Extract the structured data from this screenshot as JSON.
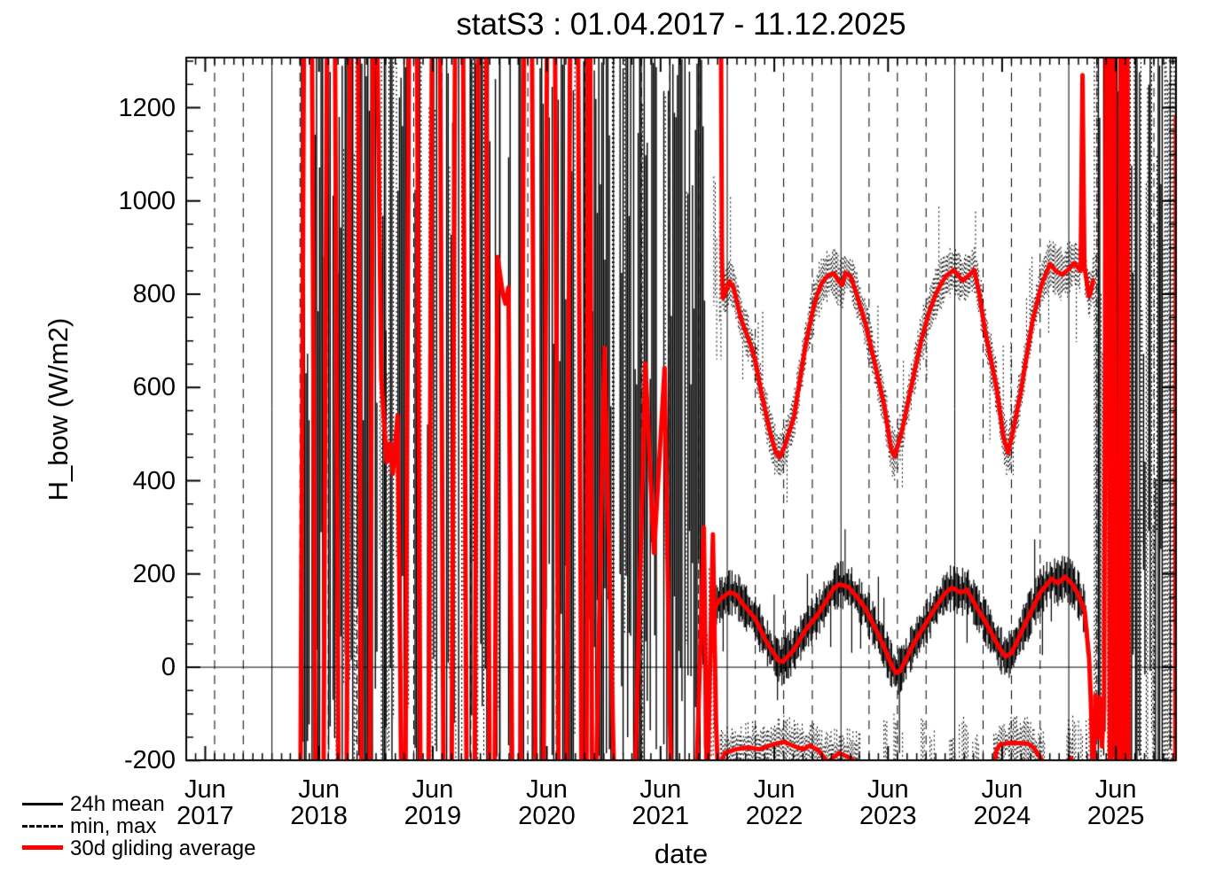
{
  "title": "statS3 : 01.04.2017 - 11.12.2025",
  "axes": {
    "xlabel": "date",
    "ylabel": "H_bow (W/m2)",
    "x_major_month_label": "Jun",
    "x_years": [
      "2017",
      "2018",
      "2019",
      "2020",
      "2021",
      "2022",
      "2023",
      "2024",
      "2025"
    ],
    "y_ticks": [
      -200,
      0,
      200,
      400,
      600,
      800,
      1000,
      1200
    ],
    "y_minor_step": 50
  },
  "legend": [
    {
      "label": "24h mean",
      "style": "solid",
      "color": "#000000"
    },
    {
      "label": "min, max",
      "style": "dashed",
      "color": "#000000"
    },
    {
      "label": "30d gliding average",
      "style": "solid-thick",
      "color": "#ff0000"
    }
  ],
  "colors": {
    "background": "#ffffff",
    "foreground": "#000000",
    "accent_red": "#ff0000"
  },
  "chart_data": {
    "type": "line",
    "title": "statS3 : 01.04.2017 - 11.12.2025",
    "xlabel": "date",
    "ylabel": "H_bow (W/m2)",
    "xlim": [
      "2017-04-01",
      "2025-12-11"
    ],
    "ylim": [
      -199.5,
      1307.5
    ],
    "grid": {
      "vertical_solid_months": [
        1
      ],
      "vertical_dashed_months": [
        4,
        7,
        10
      ],
      "horizontal_line_at": 0,
      "x_major_tick_month": 6
    },
    "noise_regions": [
      {
        "start": "2018-04-01",
        "end": "2021-10-22",
        "type": "saturated"
      },
      {
        "start": "2021-10-22",
        "end": "2021-11-22",
        "type": "sparse"
      },
      {
        "start": "2025-03-24",
        "end": "2025-12-11",
        "type": "saturated-dotted"
      }
    ],
    "series": {
      "avg_of_max": [
        [
          "2021-12-12",
          1340
        ],
        [
          "2021-12-15",
          880
        ],
        [
          "2021-12-18",
          792
        ],
        [
          "2021-12-24",
          800
        ],
        [
          "2022-01-08",
          828
        ],
        [
          "2022-01-22",
          812
        ],
        [
          "2022-02-15",
          745
        ],
        [
          "2022-03-15",
          695
        ],
        [
          "2022-03-31",
          660
        ],
        [
          "2022-04-20",
          590
        ],
        [
          "2022-05-18",
          505
        ],
        [
          "2022-06-05",
          462
        ],
        [
          "2022-06-18",
          450
        ],
        [
          "2022-07-05",
          475
        ],
        [
          "2022-08-03",
          537
        ],
        [
          "2022-09-09",
          690
        ],
        [
          "2022-10-01",
          760
        ],
        [
          "2022-10-16",
          798
        ],
        [
          "2022-11-01",
          825
        ],
        [
          "2022-11-20",
          840
        ],
        [
          "2022-12-10",
          845
        ],
        [
          "2022-12-24",
          828
        ],
        [
          "2023-01-05",
          820
        ],
        [
          "2023-01-15",
          846
        ],
        [
          "2023-02-01",
          838
        ],
        [
          "2023-02-20",
          800
        ],
        [
          "2023-03-22",
          733
        ],
        [
          "2023-04-20",
          650
        ],
        [
          "2023-05-20",
          560
        ],
        [
          "2023-06-10",
          470
        ],
        [
          "2023-06-22",
          452
        ],
        [
          "2023-07-15",
          505
        ],
        [
          "2023-08-14",
          600
        ],
        [
          "2023-09-15",
          700
        ],
        [
          "2023-10-10",
          760
        ],
        [
          "2023-11-01",
          800
        ],
        [
          "2023-11-16",
          820
        ],
        [
          "2023-12-05",
          840
        ],
        [
          "2023-12-29",
          852
        ],
        [
          "2024-01-26",
          829
        ],
        [
          "2024-02-15",
          840
        ],
        [
          "2024-03-04",
          852
        ],
        [
          "2024-03-20",
          800
        ],
        [
          "2024-04-07",
          722
        ],
        [
          "2024-05-14",
          600
        ],
        [
          "2024-06-05",
          495
        ],
        [
          "2024-06-20",
          459
        ],
        [
          "2024-07-10",
          520
        ],
        [
          "2024-07-30",
          588
        ],
        [
          "2024-09-06",
          741
        ],
        [
          "2024-10-05",
          820
        ],
        [
          "2024-11-02",
          865
        ],
        [
          "2024-11-20",
          850
        ],
        [
          "2024-12-12",
          842
        ],
        [
          "2025-01-03",
          855
        ],
        [
          "2025-01-18",
          867
        ],
        [
          "2025-02-08",
          850
        ],
        [
          "2025-02-14",
          1270
        ],
        [
          "2025-02-20",
          860
        ],
        [
          "2025-03-01",
          820
        ],
        [
          "2025-03-07",
          795
        ],
        [
          "2025-03-14",
          810
        ],
        [
          "2025-03-20",
          830
        ]
      ],
      "avg_of_mean": [
        [
          "2021-11-24",
          130
        ],
        [
          "2021-12-05",
          142
        ],
        [
          "2021-12-17",
          150
        ],
        [
          "2022-01-09",
          161
        ],
        [
          "2022-02-01",
          155
        ],
        [
          "2022-02-20",
          135
        ],
        [
          "2022-03-31",
          105
        ],
        [
          "2022-05-01",
          62
        ],
        [
          "2022-05-18",
          42
        ],
        [
          "2022-06-15",
          14
        ],
        [
          "2022-06-29",
          12
        ],
        [
          "2022-08-03",
          38
        ],
        [
          "2022-09-09",
          80
        ],
        [
          "2022-10-15",
          110
        ],
        [
          "2022-11-10",
          137
        ],
        [
          "2022-12-08",
          169
        ],
        [
          "2022-12-28",
          178
        ],
        [
          "2023-01-25",
          172
        ],
        [
          "2023-02-22",
          150
        ],
        [
          "2023-03-22",
          124
        ],
        [
          "2023-04-20",
          85
        ],
        [
          "2023-05-20",
          42
        ],
        [
          "2023-06-12",
          5
        ],
        [
          "2023-06-26",
          -12
        ],
        [
          "2023-07-10",
          -8
        ],
        [
          "2023-08-10",
          35
        ],
        [
          "2023-08-31",
          61
        ],
        [
          "2023-10-01",
          95
        ],
        [
          "2023-10-27",
          124
        ],
        [
          "2023-11-30",
          158
        ],
        [
          "2023-12-23",
          171
        ],
        [
          "2024-01-20",
          160
        ],
        [
          "2024-02-09",
          166
        ],
        [
          "2024-03-10",
          130
        ],
        [
          "2024-04-07",
          99
        ],
        [
          "2024-05-20",
          45
        ],
        [
          "2024-06-11",
          23
        ],
        [
          "2024-07-01",
          30
        ],
        [
          "2024-08-18",
          99
        ],
        [
          "2024-10-01",
          160
        ],
        [
          "2024-11-07",
          190
        ],
        [
          "2024-11-27",
          180
        ],
        [
          "2024-12-20",
          194
        ],
        [
          "2025-01-12",
          178
        ],
        [
          "2025-02-01",
          155
        ],
        [
          "2025-02-21",
          120
        ],
        [
          "2025-03-07",
          20
        ],
        [
          "2025-03-12",
          -60
        ],
        [
          "2025-03-16",
          -150
        ],
        [
          "2025-03-19",
          -250
        ]
      ],
      "avg_of_min_arcs": [
        [
          [
            "2021-12-10",
            -225
          ],
          [
            "2021-12-16",
            -196
          ],
          [
            "2021-12-24",
            -184
          ],
          [
            "2022-01-28",
            -176
          ],
          [
            "2022-03-10",
            -172
          ],
          [
            "2022-04-15",
            -176
          ],
          [
            "2022-05-25",
            -166
          ],
          [
            "2022-07-03",
            -160
          ],
          [
            "2022-08-06",
            -170
          ],
          [
            "2022-09-03",
            -176
          ],
          [
            "2022-09-23",
            -168
          ],
          [
            "2022-10-21",
            -178
          ],
          [
            "2022-11-10",
            -196
          ],
          [
            "2022-11-22",
            -205
          ],
          [
            "2022-12-03",
            -196
          ],
          [
            "2022-12-26",
            -184
          ],
          [
            "2023-01-15",
            -190
          ],
          [
            "2023-02-04",
            -196
          ],
          [
            "2023-02-21",
            -208
          ],
          [
            "2023-03-03",
            -225
          ]
        ],
        [
          [
            "2023-12-18",
            -225
          ],
          [
            "2023-12-22",
            -205
          ],
          [
            "2023-12-26",
            -225
          ]
        ],
        [
          [
            "2024-05-05",
            -225
          ],
          [
            "2024-05-13",
            -180
          ],
          [
            "2024-05-24",
            -166
          ],
          [
            "2024-06-27",
            -162
          ],
          [
            "2024-07-31",
            -163
          ],
          [
            "2024-08-23",
            -164
          ],
          [
            "2024-09-09",
            -172
          ],
          [
            "2024-09-26",
            -188
          ],
          [
            "2024-10-07",
            -200
          ],
          [
            "2024-10-15",
            -225
          ]
        ],
        [
          [
            "2024-12-26",
            -222
          ],
          [
            "2025-01-02",
            -198
          ],
          [
            "2025-01-08",
            -195
          ],
          [
            "2025-01-14",
            -222
          ]
        ]
      ],
      "wild_avg_2018_2021": [
        [
          "2018-04-02",
          -320
        ],
        [
          "2018-04-14",
          1400
        ],
        [
          "2018-05-09",
          1400
        ],
        [
          "2018-05-21",
          -320
        ],
        [
          "2018-06-15",
          -320
        ],
        [
          "2018-06-27",
          1400
        ],
        [
          "2018-07-22",
          1400
        ],
        [
          "2018-08-03",
          -320
        ],
        [
          "2018-08-28",
          -320
        ],
        [
          "2018-09-09",
          1400
        ],
        [
          "2018-10-04",
          1400
        ],
        [
          "2018-10-16",
          -320
        ],
        [
          "2018-11-10",
          -320
        ],
        [
          "2018-11-22",
          1400
        ],
        [
          "2018-12-04",
          1400
        ],
        [
          "2018-12-18",
          620
        ],
        [
          "2019-01-04",
          440
        ],
        [
          "2019-01-14",
          480
        ],
        [
          "2019-01-24",
          415
        ],
        [
          "2019-02-08",
          540
        ],
        [
          "2019-02-22",
          -320
        ],
        [
          "2019-03-05",
          -320
        ],
        [
          "2019-03-17",
          1400
        ],
        [
          "2019-04-11",
          1400
        ],
        [
          "2019-04-23",
          -320
        ],
        [
          "2019-05-18",
          -320
        ],
        [
          "2019-05-30",
          1400
        ],
        [
          "2019-06-24",
          1400
        ],
        [
          "2019-07-06",
          -320
        ],
        [
          "2019-07-31",
          -320
        ],
        [
          "2019-08-12",
          1400
        ],
        [
          "2019-09-06",
          1400
        ],
        [
          "2019-09-18",
          -320
        ],
        [
          "2019-10-13",
          -320
        ],
        [
          "2019-10-25",
          1400
        ],
        [
          "2019-11-19",
          1400
        ],
        [
          "2019-12-01",
          -320
        ],
        [
          "2019-12-16",
          -320
        ],
        [
          "2019-12-26",
          880
        ],
        [
          "2020-01-12",
          800
        ],
        [
          "2020-01-20",
          780
        ],
        [
          "2020-01-30",
          815
        ],
        [
          "2020-02-12",
          -320
        ],
        [
          "2020-03-08",
          -320
        ],
        [
          "2020-03-20",
          1400
        ],
        [
          "2020-04-14",
          1400
        ],
        [
          "2020-04-26",
          -320
        ],
        [
          "2020-05-21",
          -320
        ],
        [
          "2020-06-02",
          1400
        ],
        [
          "2020-06-27",
          1400
        ],
        [
          "2020-07-09",
          -320
        ],
        [
          "2020-08-03",
          -320
        ],
        [
          "2020-08-15",
          1400
        ],
        [
          "2020-09-09",
          1400
        ],
        [
          "2020-09-21",
          -320
        ],
        [
          "2020-10-06",
          -320
        ],
        [
          "2020-10-12",
          1400
        ],
        [
          "2020-10-18",
          1400
        ],
        [
          "2020-10-24",
          -320
        ],
        [
          "2020-11-04",
          -320
        ],
        [
          "2020-12-03",
          685
        ],
        [
          "2021-01-06",
          -330
        ],
        [
          "2021-02-15",
          -330
        ],
        [
          "2021-03-08",
          -330
        ],
        [
          "2021-04-13",
          651
        ],
        [
          "2021-05-11",
          245
        ],
        [
          "2021-06-14",
          642
        ],
        [
          "2021-07-06",
          -320
        ],
        [
          "2021-08-10",
          -330
        ],
        [
          "2021-09-20",
          -330
        ],
        [
          "2021-10-18",
          300
        ],
        [
          "2021-10-28",
          -300
        ],
        [
          "2021-11-16",
          285
        ],
        [
          "2021-11-26",
          -120
        ],
        [
          "2021-12-04",
          -260
        ]
      ],
      "wild_avg_2025": [
        [
          "2025-03-21",
          -235
        ],
        [
          "2025-03-27",
          -60
        ],
        [
          "2025-04-03",
          -150
        ],
        [
          "2025-04-10",
          -65
        ],
        [
          "2025-04-17",
          -170
        ],
        [
          "2025-04-24",
          -90
        ],
        [
          "2025-05-01",
          1400
        ],
        [
          "2025-05-08",
          1400
        ],
        [
          "2025-05-13",
          -320
        ],
        [
          "2025-05-17",
          -320
        ],
        [
          "2025-05-21",
          1400
        ],
        [
          "2025-05-27",
          1400
        ],
        [
          "2025-06-02",
          -320
        ],
        [
          "2025-06-12",
          -330
        ],
        [
          "2025-06-16",
          1400
        ],
        [
          "2025-06-21",
          1400
        ],
        [
          "2025-06-25",
          -320
        ],
        [
          "2025-06-29",
          -320
        ],
        [
          "2025-07-03",
          1400
        ],
        [
          "2025-07-08",
          1400
        ],
        [
          "2025-07-12",
          -320
        ],
        [
          "2025-08-01",
          -330
        ],
        [
          "2025-11-20",
          -330
        ],
        [
          "2025-12-07",
          -330
        ],
        [
          "2025-12-09",
          -180
        ],
        [
          "2025-12-11",
          1180
        ]
      ]
    },
    "envelopes": {
      "max_band": {
        "start": "2021-12-14",
        "end": "2025-03-20",
        "halfwidth_range": [
          24,
          62
        ],
        "style": "dotted"
      },
      "max_band_lead_in": {
        "start": "2021-11-19",
        "end": "2021-12-24",
        "value_range": [
          650,
          1060
        ],
        "style": "dotted"
      },
      "mean_band": {
        "start": "2021-11-24",
        "end": "2025-03-17",
        "halfwidth_range": [
          16,
          52
        ],
        "style": "solid"
      },
      "min_band_arcs": [
        {
          "start": "2021-12-10",
          "end": "2023-03-03"
        },
        {
          "start": "2023-12-16",
          "end": "2023-12-28"
        },
        {
          "start": "2024-05-05",
          "end": "2024-10-15"
        },
        {
          "start": "2024-12-26",
          "end": "2025-01-14"
        }
      ],
      "min_band_center": -178,
      "min_sparse_columns": [
        {
          "date": "2023-05-28",
          "range": [
            -110,
            -215
          ]
        },
        {
          "date": "2023-06-20",
          "range": [
            -95,
            -220
          ]
        },
        {
          "date": "2023-07-13",
          "range": [
            -120,
            -215
          ]
        },
        {
          "date": "2023-09-25",
          "range": [
            -100,
            -210
          ]
        },
        {
          "date": "2023-10-18",
          "range": [
            -130,
            -220
          ]
        },
        {
          "date": "2024-01-25",
          "range": [
            -95,
            -215
          ]
        },
        {
          "date": "2024-02-17",
          "range": [
            -120,
            -220
          ]
        },
        {
          "date": "2024-03-08",
          "range": [
            -140,
            -215
          ]
        },
        {
          "date": "2024-12-31",
          "range": [
            -110,
            -215
          ]
        },
        {
          "date": "2025-01-23",
          "range": [
            -95,
            -220
          ]
        },
        {
          "date": "2025-02-18",
          "range": [
            -120,
            -215
          ]
        },
        {
          "date": "2025-03-07",
          "range": [
            -100,
            -220
          ]
        }
      ]
    }
  }
}
